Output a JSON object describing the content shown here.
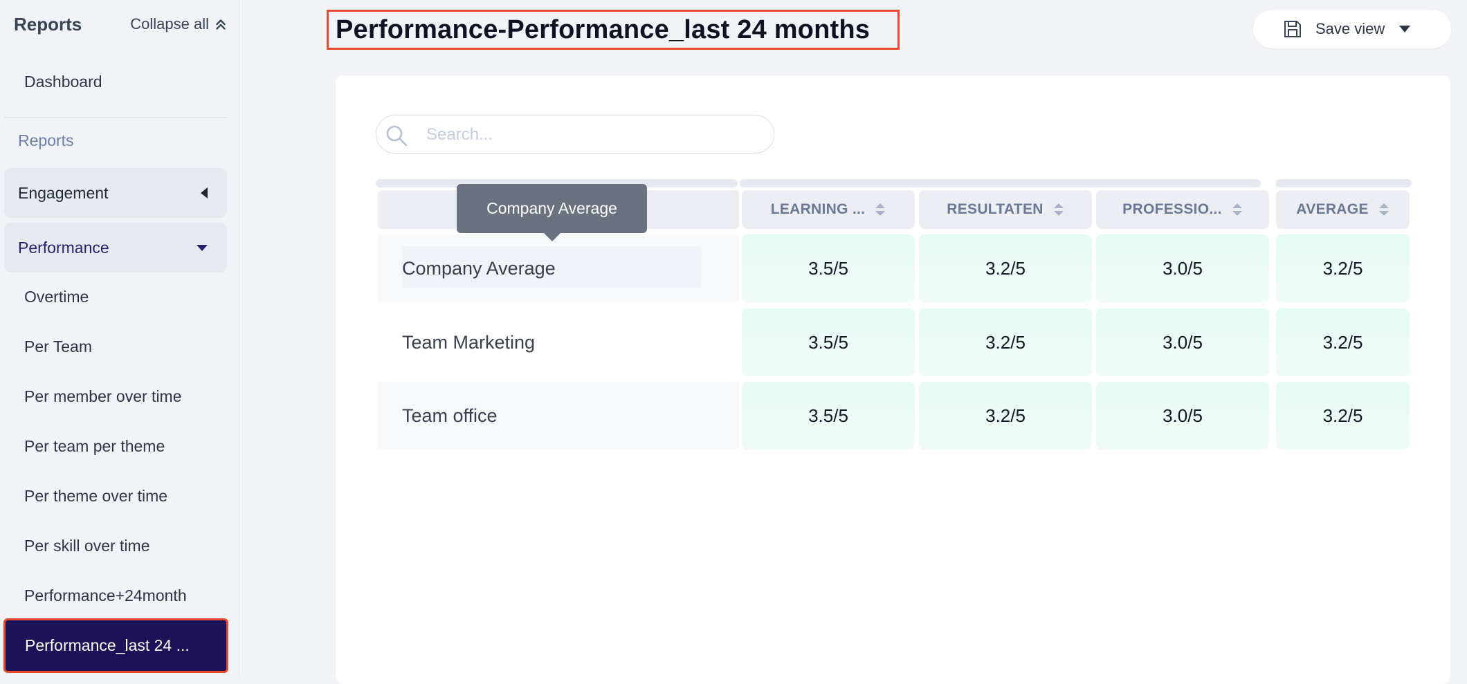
{
  "sidebar": {
    "title": "Reports",
    "collapse_label": "Collapse all",
    "top_item": "Dashboard",
    "section_label": "Reports",
    "groups": [
      {
        "label": "Engagement",
        "state": "collapsed"
      },
      {
        "label": "Performance",
        "state": "expanded"
      }
    ],
    "items": [
      "Overtime",
      "Per Team",
      "Per member over time",
      "Per team per theme",
      "Per theme over time",
      "Per skill over time",
      "Performance+24month"
    ],
    "active_item": "Performance_last 24 ..."
  },
  "header": {
    "title": "Performance-Performance_last 24 months",
    "save_view_label": "Save view"
  },
  "search": {
    "placeholder": "Search...",
    "value": ""
  },
  "table": {
    "columns": [
      "LEARNING ...",
      "RESULTATEN",
      "PROFESSIO...",
      "AVERAGE"
    ],
    "rows": [
      {
        "name": "Company Average",
        "values": [
          "3.5/5",
          "3.2/5",
          "3.0/5",
          "3.2/5"
        ]
      },
      {
        "name": "Team Marketing",
        "values": [
          "3.5/5",
          "3.2/5",
          "3.0/5",
          "3.2/5"
        ]
      },
      {
        "name": "Team office",
        "values": [
          "3.5/5",
          "3.2/5",
          "3.0/5",
          "3.2/5"
        ]
      }
    ]
  },
  "tooltip": {
    "text": "Company Average"
  },
  "colors": {
    "accent": "#1d1158",
    "highlight_border": "#e84a2e",
    "cell_bg": "#e5fbf4",
    "tooltip_bg": "#6b7180"
  }
}
